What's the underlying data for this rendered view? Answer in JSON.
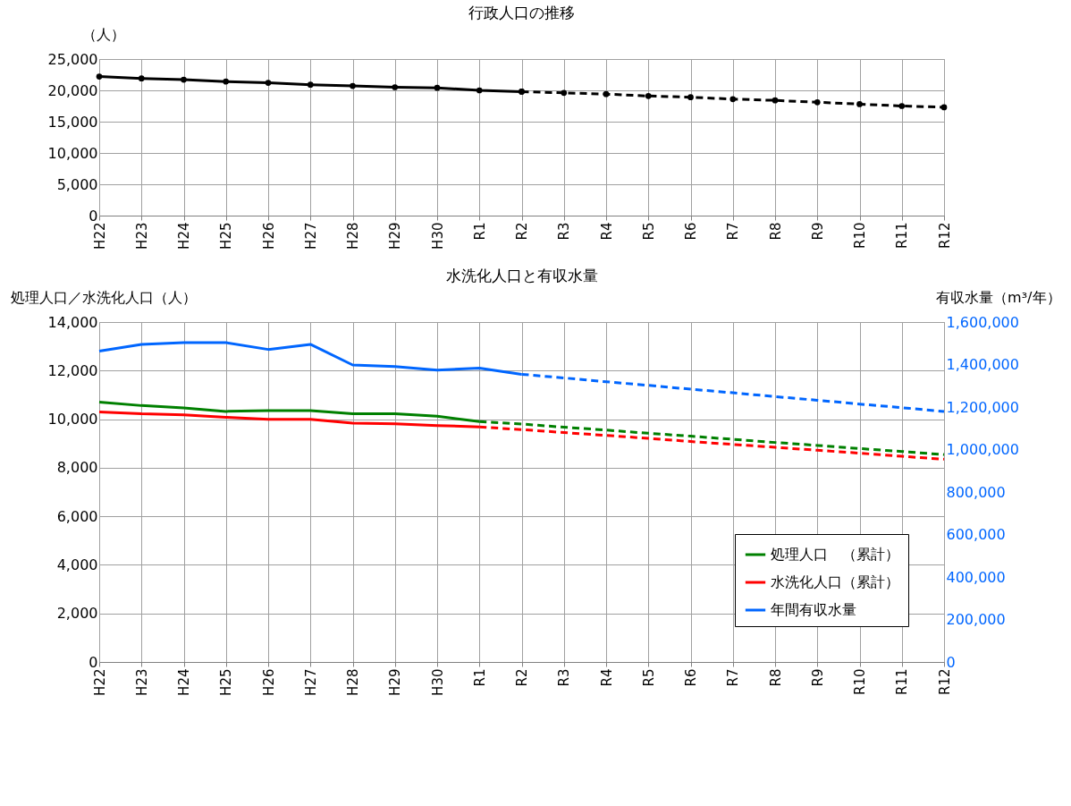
{
  "chart_data": [
    {
      "type": "line",
      "title": "行政人口の推移",
      "ylabel": "（人）",
      "categories": [
        "H22",
        "H23",
        "H24",
        "H25",
        "H26",
        "H27",
        "H28",
        "H29",
        "H30",
        "R1",
        "R2",
        "R3",
        "R4",
        "R5",
        "R6",
        "R7",
        "R8",
        "R9",
        "R10",
        "R11",
        "R12"
      ],
      "series": [
        {
          "color": "#000000",
          "line_style": "solid",
          "values": [
            22200,
            21900,
            21700,
            21400,
            21200,
            20900,
            20700,
            20500,
            20400,
            20000,
            19800,
            null,
            null,
            null,
            null,
            null,
            null,
            null,
            null,
            null,
            null
          ]
        },
        {
          "color": "#000000",
          "line_style": "dashed",
          "values": [
            null,
            null,
            null,
            null,
            null,
            null,
            null,
            null,
            null,
            null,
            19800,
            19600,
            19400,
            19100,
            18900,
            18600,
            18400,
            18100,
            17800,
            17500,
            17300
          ]
        }
      ],
      "ylim": [
        0,
        25000
      ],
      "yticks": [
        0,
        {
          "value": 5000,
          "label": "5,000"
        },
        {
          "value": 10000,
          "label": "10,000"
        },
        {
          "value": 15000,
          "label": "15,000"
        },
        {
          "value": 20000,
          "label": "20,000"
        },
        {
          "value": 25000,
          "label": "25,000"
        }
      ],
      "grid": true,
      "marker": "circle",
      "legend": false
    },
    {
      "type": "line",
      "title": "水洗化人口と有収水量",
      "ylabel": "処理人口／水洗化人口（人）",
      "y2label": "有収水量（m³/年）",
      "categories": [
        "H22",
        "H23",
        "H24",
        "H25",
        "H26",
        "H27",
        "H28",
        "H29",
        "H30",
        "R1",
        "R2",
        "R3",
        "R4",
        "R5",
        "R6",
        "R7",
        "R8",
        "R9",
        "R10",
        "R11",
        "R12"
      ],
      "series": [
        {
          "name": "処理人口　（累計）",
          "color": "#008000",
          "line_style": "solid",
          "values": [
            10700,
            10560,
            10460,
            10320,
            10350,
            10350,
            10220,
            10220,
            10120,
            9900,
            null,
            null,
            null,
            null,
            null,
            null,
            null,
            null,
            null,
            null,
            null
          ]
        },
        {
          "color": "#008000",
          "line_style": "dashed",
          "values": [
            null,
            null,
            null,
            null,
            null,
            null,
            null,
            null,
            null,
            9900,
            9800,
            9670,
            9550,
            9420,
            9300,
            9170,
            9040,
            8920,
            8790,
            8670,
            8540
          ]
        },
        {
          "name": "水洗化人口（累計）",
          "color": "#ff0000",
          "line_style": "solid",
          "values": [
            10300,
            10220,
            10180,
            10080,
            9990,
            9990,
            9840,
            9810,
            9740,
            9680,
            null,
            null,
            null,
            null,
            null,
            null,
            null,
            null,
            null,
            null,
            null
          ]
        },
        {
          "color": "#ff0000",
          "line_style": "dashed",
          "values": [
            null,
            null,
            null,
            null,
            null,
            null,
            null,
            null,
            null,
            9680,
            9570,
            9450,
            9330,
            9210,
            9080,
            8960,
            8840,
            8720,
            8600,
            8470,
            8350
          ]
        },
        {
          "name": "年間有収水量",
          "color": "#0066ff",
          "line_style": "solid",
          "axis": "y2",
          "values": [
            1463000,
            1495000,
            1503000,
            1503000,
            1471000,
            1495000,
            1398000,
            1391000,
            1374000,
            1383000,
            1354000,
            null,
            null,
            null,
            null,
            null,
            null,
            null,
            null,
            null,
            null
          ]
        },
        {
          "color": "#0066ff",
          "line_style": "dashed",
          "axis": "y2",
          "values": [
            null,
            null,
            null,
            null,
            null,
            null,
            null,
            null,
            null,
            null,
            1354000,
            1337000,
            1319000,
            1302000,
            1284000,
            1267000,
            1249000,
            1232000,
            1214000,
            1197000,
            1179000
          ]
        }
      ],
      "ylim": [
        0,
        14000
      ],
      "yticks": [
        0,
        {
          "value": 2000,
          "label": "2,000"
        },
        {
          "value": 4000,
          "label": "4,000"
        },
        {
          "value": 6000,
          "label": "6,000"
        },
        {
          "value": 8000,
          "label": "8,000"
        },
        {
          "value": 10000,
          "label": "10,000"
        },
        {
          "value": 12000,
          "label": "12,000"
        },
        {
          "value": 14000,
          "label": "14,000"
        }
      ],
      "y2lim": [
        0,
        1600000
      ],
      "y2ticks": [
        0,
        {
          "value": 200000,
          "label": "200,000"
        },
        {
          "value": 400000,
          "label": "400,000"
        },
        {
          "value": 600000,
          "label": "600,000"
        },
        {
          "value": 800000,
          "label": "800,000"
        },
        {
          "value": 1000000,
          "label": "1,000,000"
        },
        {
          "value": 1200000,
          "label": "1,200,000"
        },
        {
          "value": 1400000,
          "label": "1,400,000"
        },
        {
          "value": 1600000,
          "label": "1,600,000"
        }
      ],
      "grid": true,
      "legend": "bottom right"
    }
  ]
}
